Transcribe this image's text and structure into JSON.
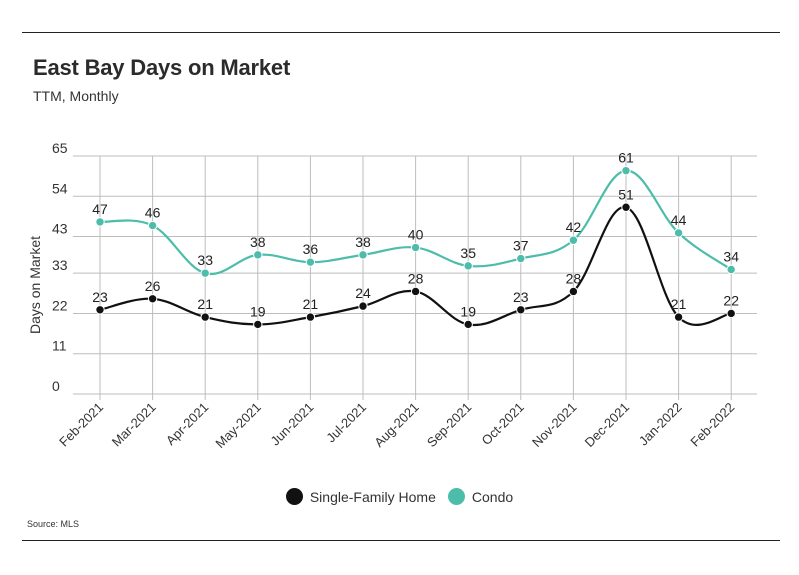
{
  "header": {
    "title": "East Bay Days on Market",
    "subtitle": "TTM, Monthly"
  },
  "footer": {
    "source": "Source:  MLS"
  },
  "chart_data": {
    "type": "line",
    "title": "East Bay Days on Market",
    "subtitle": "TTM, Monthly",
    "xlabel": "",
    "ylabel": "Days on Market",
    "ylim": [
      0,
      65
    ],
    "yticks": [
      0,
      11,
      22,
      33,
      43,
      54,
      65
    ],
    "categories": [
      "Feb-2021",
      "Mar-2021",
      "Apr-2021",
      "May-2021",
      "Jun-2021",
      "Jul-2021",
      "Aug-2021",
      "Sep-2021",
      "Oct-2021",
      "Nov-2021",
      "Dec-2021",
      "Jan-2022",
      "Feb-2022"
    ],
    "grid": true,
    "legend_position": "bottom-center",
    "series": [
      {
        "name": "Single-Family Home",
        "color": "#111111",
        "values": [
          23,
          26,
          21,
          19,
          21,
          24,
          28,
          19,
          23,
          28,
          51,
          21,
          22
        ]
      },
      {
        "name": "Condo",
        "color": "#4dbdab",
        "values": [
          47,
          46,
          33,
          38,
          36,
          38,
          40,
          35,
          37,
          42,
          61,
          44,
          34
        ]
      }
    ]
  }
}
